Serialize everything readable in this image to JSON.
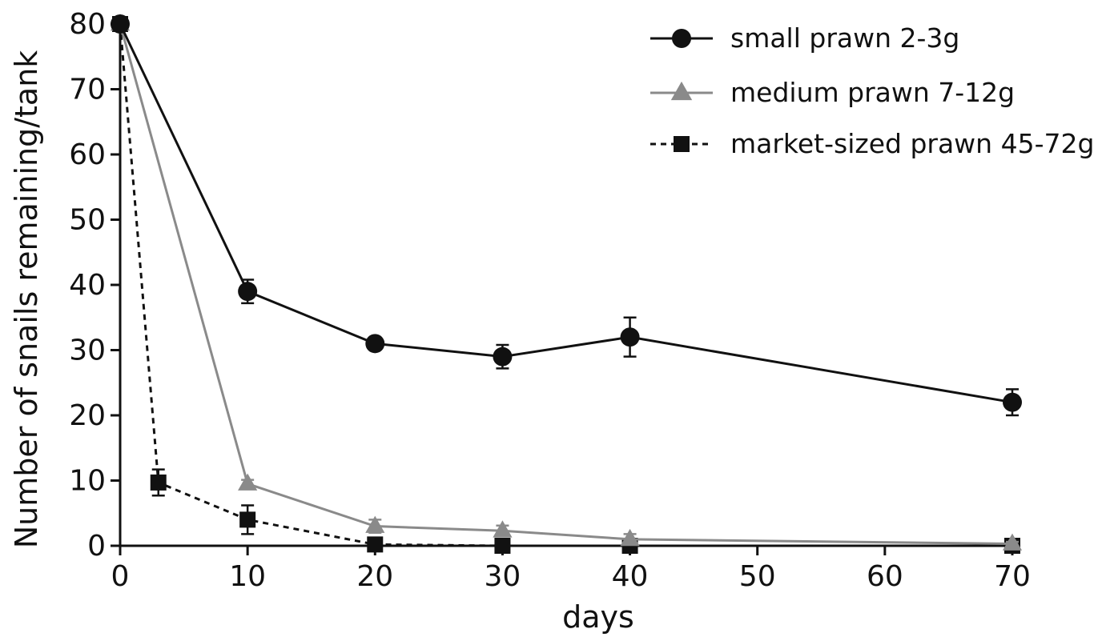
{
  "chart_data": {
    "type": "line",
    "title": "",
    "xlabel": "days",
    "ylabel": "Number of snails remaining/tank",
    "xlim": [
      0,
      70
    ],
    "ylim": [
      0,
      80
    ],
    "xticks": [
      "0",
      "10",
      "20",
      "30",
      "40",
      "50",
      "60",
      "70"
    ],
    "yticks": [
      "0",
      "10",
      "20",
      "30",
      "40",
      "50",
      "60",
      "70",
      "80"
    ],
    "grid": false,
    "legend_position": "top-right",
    "series": [
      {
        "name": "small prawn 2-3g",
        "color": "#111111",
        "line_style": "solid",
        "marker": "circle",
        "points": [
          {
            "x": 0,
            "y": 80,
            "err": 0
          },
          {
            "x": 10,
            "y": 39,
            "err": 1.8
          },
          {
            "x": 20,
            "y": 31,
            "err": 0.8
          },
          {
            "x": 30,
            "y": 29,
            "err": 1.8
          },
          {
            "x": 40,
            "y": 32,
            "err": 3
          },
          {
            "x": 70,
            "y": 22,
            "err": 2
          }
        ]
      },
      {
        "name": "medium prawn 7-12g",
        "color": "#8a8a8a",
        "line_style": "solid",
        "marker": "triangle",
        "points": [
          {
            "x": 0,
            "y": 80,
            "err": 0
          },
          {
            "x": 10,
            "y": 9.5,
            "err": 0.6
          },
          {
            "x": 20,
            "y": 3,
            "err": 1
          },
          {
            "x": 30,
            "y": 2.3,
            "err": 0.8
          },
          {
            "x": 40,
            "y": 1,
            "err": 0.8
          },
          {
            "x": 70,
            "y": 0.3,
            "err": 0.3
          }
        ]
      },
      {
        "name": "market-sized prawn 45-72g",
        "color": "#111111",
        "line_style": "dashed",
        "marker": "square",
        "points": [
          {
            "x": 0,
            "y": 80,
            "err": 0
          },
          {
            "x": 3,
            "y": 9.7,
            "err": 2
          },
          {
            "x": 10,
            "y": 4,
            "err": 2.2
          },
          {
            "x": 20,
            "y": 0.2,
            "err": 0.4
          },
          {
            "x": 30,
            "y": 0,
            "err": 0.3
          },
          {
            "x": 40,
            "y": 0,
            "err": 0.3
          },
          {
            "x": 70,
            "y": 0,
            "err": 0.2
          }
        ]
      }
    ]
  }
}
